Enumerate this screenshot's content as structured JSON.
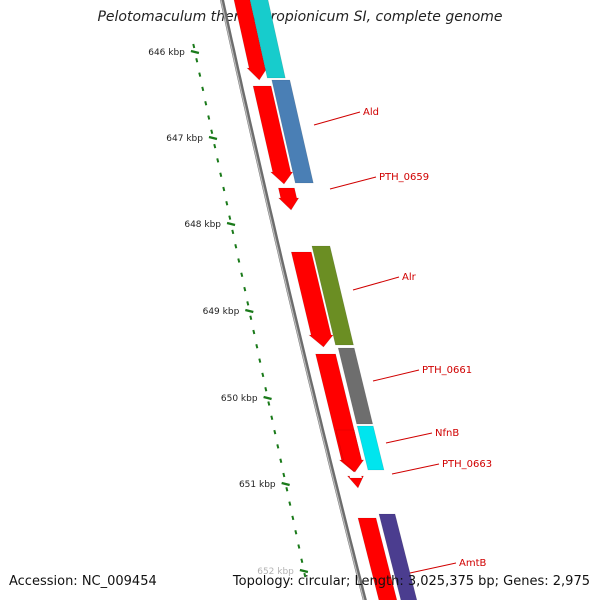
{
  "title": "Pelotomaculum thermopropionicum SI, complete genome",
  "footer": {
    "accession": "Accession: NC_009454",
    "stats": "Topology: circular; Length: 3,025,375 bp; Genes: 2,975"
  },
  "ticks": [
    "646 kbp",
    "647 kbp",
    "648 kbp",
    "649 kbp",
    "650 kbp",
    "651 kbp",
    "652 kbp"
  ],
  "genes": [
    {
      "label": "Ald",
      "color": "#4a7fb5"
    },
    {
      "label": "PTH_0659",
      "color": "#ff0000"
    },
    {
      "label": "Alr",
      "color": "#6b8e23"
    },
    {
      "label": "PTH_0661",
      "color": "#6e6e6e"
    },
    {
      "label": "NfnB",
      "color": "#00e5ee"
    },
    {
      "label": "PTH_0663",
      "color": "#ff0000"
    },
    {
      "label": "AmtB",
      "color": "#4b3d8f"
    }
  ],
  "colors": {
    "cds": "#ff0000",
    "tick": "#1a7a1a",
    "backbone": "#8a8a8a",
    "label": "#d00000"
  }
}
